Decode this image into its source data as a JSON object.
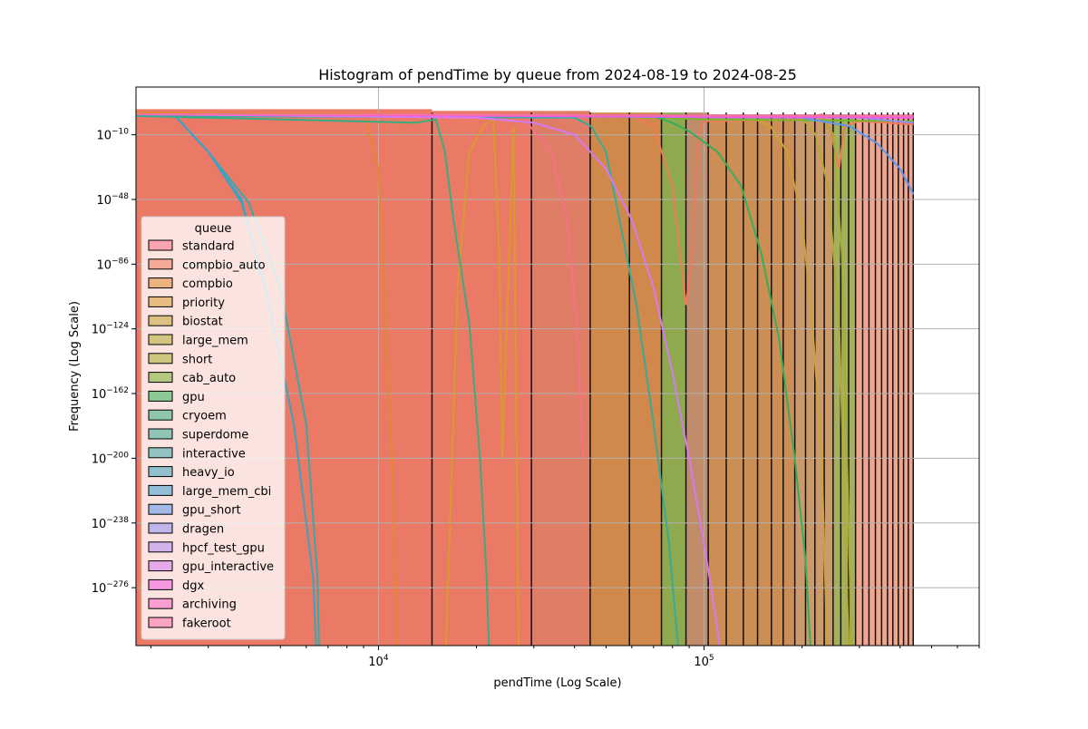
{
  "chart_data": {
    "type": "histogram",
    "title": "Histogram of pendTime by queue from 2024-08-19 to 2024-08-25",
    "xlabel": "pendTime (Log Scale)",
    "ylabel": "Frequency (Log Scale)",
    "x_scale": "log",
    "y_scale": "log",
    "xlim": [
      1800,
      700000
    ],
    "ylim_exponent": [
      -310,
      18
    ],
    "grid": true,
    "x_ticks": [
      {
        "value": 10000,
        "base": "10",
        "exp": "4"
      },
      {
        "value": 100000,
        "base": "10",
        "exp": "5"
      }
    ],
    "y_ticks": [
      {
        "exp_value": -10,
        "base": "10",
        "exp": "−10"
      },
      {
        "exp_value": -48,
        "base": "10",
        "exp": "−48"
      },
      {
        "exp_value": -86,
        "base": "10",
        "exp": "−86"
      },
      {
        "exp_value": -124,
        "base": "10",
        "exp": "−124"
      },
      {
        "exp_value": -162,
        "base": "10",
        "exp": "−162"
      },
      {
        "exp_value": -200,
        "base": "10",
        "exp": "−200"
      },
      {
        "exp_value": -238,
        "base": "10",
        "exp": "−238"
      },
      {
        "exp_value": -276,
        "base": "10",
        "exp": "−276"
      }
    ],
    "bin_edges": [
      14600,
      29500,
      44700,
      59000,
      74000,
      88000,
      103000,
      117000,
      132000,
      146000,
      161000,
      175000,
      190000,
      205000,
      219000,
      234000,
      249000,
      263000,
      278000,
      292000,
      307000,
      321000,
      336000,
      351000,
      366000,
      380000,
      395000,
      410000,
      424000,
      439000
    ],
    "bars": [
      {
        "x0": 1800,
        "x1": 14600,
        "exp_value": 5,
        "color": "#ea7a66"
      },
      {
        "x0": 14600,
        "x1": 29500,
        "exp_value": 4,
        "color": "#ea7a66"
      },
      {
        "x0": 29500,
        "x1": 44700,
        "exp_value": 4,
        "color": "#df7d66"
      },
      {
        "x0": 44700,
        "x1": 74000,
        "exp_value": 3,
        "color": "#d0894a"
      },
      {
        "x0": 74000,
        "x1": 88000,
        "exp_value": 3,
        "color": "#8faa4e"
      },
      {
        "x0": 88000,
        "x1": 103000,
        "exp_value": 3,
        "color": "#c08c6b"
      },
      {
        "x0": 103000,
        "x1": 190000,
        "exp_value": 2,
        "color": "#cd8e55"
      },
      {
        "x0": 190000,
        "x1": 249000,
        "exp_value": 2,
        "color": "#cc9a6a"
      },
      {
        "x0": 249000,
        "x1": 292000,
        "exp_value": 2,
        "color": "#a4b05c"
      },
      {
        "x0": 292000,
        "x1": 439000,
        "exp_value": 2,
        "color": "#f0a58e"
      }
    ],
    "series": [
      {
        "name": "standard",
        "color": "#f77189",
        "kde": [
          [
            28000,
            0
          ],
          [
            30000,
            -8
          ],
          [
            34000,
            -20
          ],
          [
            38000,
            -60
          ],
          [
            41000,
            -130
          ],
          [
            42500,
            -200
          ]
        ]
      },
      {
        "name": "compbio_auto",
        "color": "#f37a57",
        "kde": [
          [
            1800,
            3
          ],
          [
            60000,
            1
          ],
          [
            70000,
            -5
          ],
          [
            80000,
            -40
          ],
          [
            88000,
            -110
          ],
          [
            92000,
            -80
          ],
          [
            96000,
            -10
          ],
          [
            100000,
            -2
          ],
          [
            200000,
            -1
          ],
          [
            230000,
            2
          ],
          [
            245000,
            -8
          ],
          [
            260000,
            -30
          ],
          [
            270000,
            -5
          ],
          [
            300000,
            -2
          ],
          [
            440000,
            -4
          ]
        ]
      },
      {
        "name": "compbio",
        "color": "#e08930",
        "kde": [
          [
            1800,
            3
          ],
          [
            9000,
            2
          ],
          [
            10000,
            -30
          ],
          [
            11000,
            -200
          ],
          [
            11500,
            -330
          ]
        ]
      },
      {
        "name": "priority",
        "color": "#d89a31",
        "kde": [
          [
            16000,
            -330
          ],
          [
            17500,
            -100
          ],
          [
            19000,
            -20
          ],
          [
            21000,
            -5
          ],
          [
            22500,
            0
          ],
          [
            23500,
            -80
          ],
          [
            24000,
            -200
          ],
          [
            26000,
            -5
          ],
          [
            27000,
            -330
          ]
        ]
      },
      {
        "name": "biostat",
        "color": "#c9a339",
        "kde": [
          [
            140000,
            0
          ],
          [
            160000,
            -5
          ],
          [
            180000,
            -20
          ],
          [
            200000,
            -60
          ],
          [
            215000,
            -120
          ],
          [
            230000,
            -200
          ],
          [
            240000,
            -330
          ]
        ]
      },
      {
        "name": "large_mem",
        "color": "#b7a933",
        "kde": [
          [
            200000,
            0
          ],
          [
            220000,
            -10
          ],
          [
            240000,
            -40
          ],
          [
            260000,
            -120
          ],
          [
            280000,
            -330
          ]
        ]
      },
      {
        "name": "short",
        "color": "#a5ae32",
        "kde": [
          [
            230000,
            0
          ],
          [
            250000,
            -10
          ],
          [
            265000,
            -80
          ],
          [
            275000,
            -200
          ],
          [
            285000,
            -330
          ]
        ]
      },
      {
        "name": "cab_auto",
        "color": "#7cb131",
        "kde": [
          [
            1800,
            2
          ],
          [
            50000,
            1
          ],
          [
            100000,
            -1
          ],
          [
            440000,
            -2
          ]
        ]
      },
      {
        "name": "gpu",
        "color": "#35ae5a",
        "kde": [
          [
            1800,
            2
          ],
          [
            70000,
            1
          ],
          [
            80000,
            -3
          ],
          [
            90000,
            -8
          ],
          [
            110000,
            -20
          ],
          [
            130000,
            -40
          ],
          [
            150000,
            -80
          ],
          [
            170000,
            -130
          ],
          [
            190000,
            -200
          ],
          [
            205000,
            -260
          ],
          [
            215000,
            -330
          ]
        ]
      },
      {
        "name": "cryoem",
        "color": "#37ad80",
        "kde": [
          [
            1800,
            1
          ],
          [
            13000,
            -3
          ],
          [
            15000,
            -1
          ],
          [
            16000,
            -20
          ],
          [
            17000,
            -60
          ],
          [
            19000,
            -120
          ],
          [
            20500,
            -200
          ],
          [
            21500,
            -270
          ],
          [
            22000,
            -330
          ]
        ]
      },
      {
        "name": "superdome",
        "color": "#39aa96",
        "kde": [
          [
            1800,
            1
          ],
          [
            40000,
            0
          ],
          [
            45000,
            -5
          ],
          [
            50000,
            -20
          ],
          [
            55000,
            -60
          ],
          [
            62000,
            -110
          ],
          [
            70000,
            -180
          ],
          [
            78000,
            -250
          ],
          [
            85000,
            -330
          ]
        ]
      },
      {
        "name": "interactive",
        "color": "#3aa8a8",
        "kde": [
          [
            2400,
            0
          ],
          [
            3000,
            -20
          ],
          [
            4000,
            -50
          ],
          [
            5000,
            -100
          ],
          [
            6000,
            -180
          ],
          [
            6500,
            -270
          ],
          [
            6600,
            -330
          ]
        ]
      },
      {
        "name": "heavy_io",
        "color": "#3ba3bb",
        "kde": [
          [
            2400,
            0
          ],
          [
            3000,
            -20
          ],
          [
            3800,
            -50
          ],
          [
            4500,
            -100
          ],
          [
            5500,
            -180
          ],
          [
            6300,
            -270
          ],
          [
            6500,
            -330
          ]
        ]
      },
      {
        "name": "large_mem_cbi",
        "color": "#3e9fd0",
        "kde": [
          [
            2400,
            0
          ],
          [
            3000,
            -20
          ],
          [
            3800,
            -48
          ],
          [
            4400,
            -95
          ]
        ]
      },
      {
        "name": "gpu_short",
        "color": "#5b97f1",
        "kde": [
          [
            1800,
            2
          ],
          [
            200000,
            0
          ],
          [
            280000,
            -5
          ],
          [
            340000,
            -15
          ],
          [
            400000,
            -30
          ],
          [
            440000,
            -45
          ]
        ]
      },
      {
        "name": "dragen",
        "color": "#8f90f4",
        "kde": [
          [
            1800,
            2
          ],
          [
            300000,
            0
          ],
          [
            440000,
            -3
          ]
        ]
      },
      {
        "name": "hpcf_test_gpu",
        "color": "#ae88f4",
        "kde": [
          [
            1800,
            2
          ],
          [
            440000,
            0
          ]
        ]
      },
      {
        "name": "gpu_interactive",
        "color": "#d57af2",
        "kde": [
          [
            1800,
            2
          ],
          [
            20000,
            0
          ],
          [
            30000,
            -3
          ],
          [
            40000,
            -10
          ],
          [
            50000,
            -30
          ],
          [
            60000,
            -60
          ],
          [
            70000,
            -100
          ],
          [
            80000,
            -150
          ],
          [
            90000,
            -200
          ],
          [
            100000,
            -250
          ],
          [
            110000,
            -300
          ],
          [
            115000,
            -330
          ]
        ]
      },
      {
        "name": "dgx",
        "color": "#f15ae0",
        "kde": [
          [
            1800,
            2
          ],
          [
            440000,
            0
          ]
        ]
      },
      {
        "name": "archiving",
        "color": "#f565c7",
        "kde": [
          [
            1800,
            2
          ],
          [
            440000,
            1
          ]
        ]
      },
      {
        "name": "fakeroot",
        "color": "#f66fa9",
        "kde": [
          [
            1800,
            2
          ],
          [
            440000,
            1
          ]
        ]
      }
    ]
  },
  "legend": {
    "title": "queue",
    "placement": "center-left"
  }
}
